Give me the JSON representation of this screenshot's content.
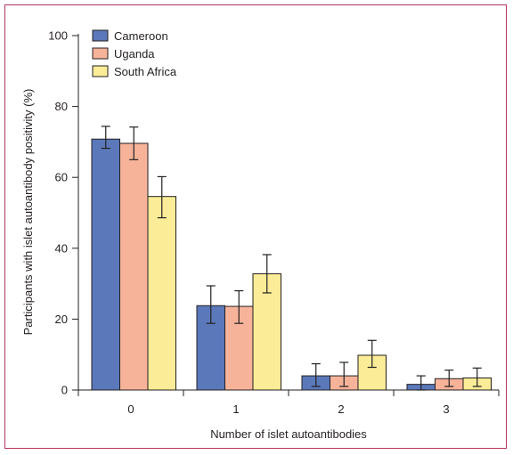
{
  "chart_data": {
    "type": "bar",
    "categories": [
      "0",
      "1",
      "2",
      "3"
    ],
    "series": [
      {
        "name": "Cameroon",
        "color": "#5b79ba",
        "values": [
          70.8,
          23.8,
          4.0,
          1.6
        ],
        "err_low": [
          68.2,
          18.8,
          1.0,
          0.0
        ],
        "err_high": [
          74.4,
          29.4,
          7.4,
          4.0
        ]
      },
      {
        "name": "Uganda",
        "color": "#f6b39a",
        "values": [
          69.6,
          23.6,
          4.0,
          3.2
        ],
        "err_low": [
          65.0,
          18.8,
          1.0,
          1.0
        ],
        "err_high": [
          74.2,
          28.0,
          7.8,
          5.6
        ]
      },
      {
        "name": "South Africa",
        "color": "#fbec97",
        "values": [
          54.6,
          32.8,
          9.8,
          3.4
        ],
        "err_low": [
          48.6,
          27.4,
          6.4,
          1.0
        ],
        "err_high": [
          60.2,
          38.2,
          14.0,
          6.2
        ]
      }
    ],
    "xlabel": "Number of islet autoantibodies",
    "ylabel": "Participants with islet autoantibody positivity (%)",
    "ylim": [
      0,
      100
    ],
    "yticks": [
      "0",
      "20",
      "40",
      "60",
      "80",
      "100"
    ],
    "legend_position": "top-left",
    "grid": false
  }
}
